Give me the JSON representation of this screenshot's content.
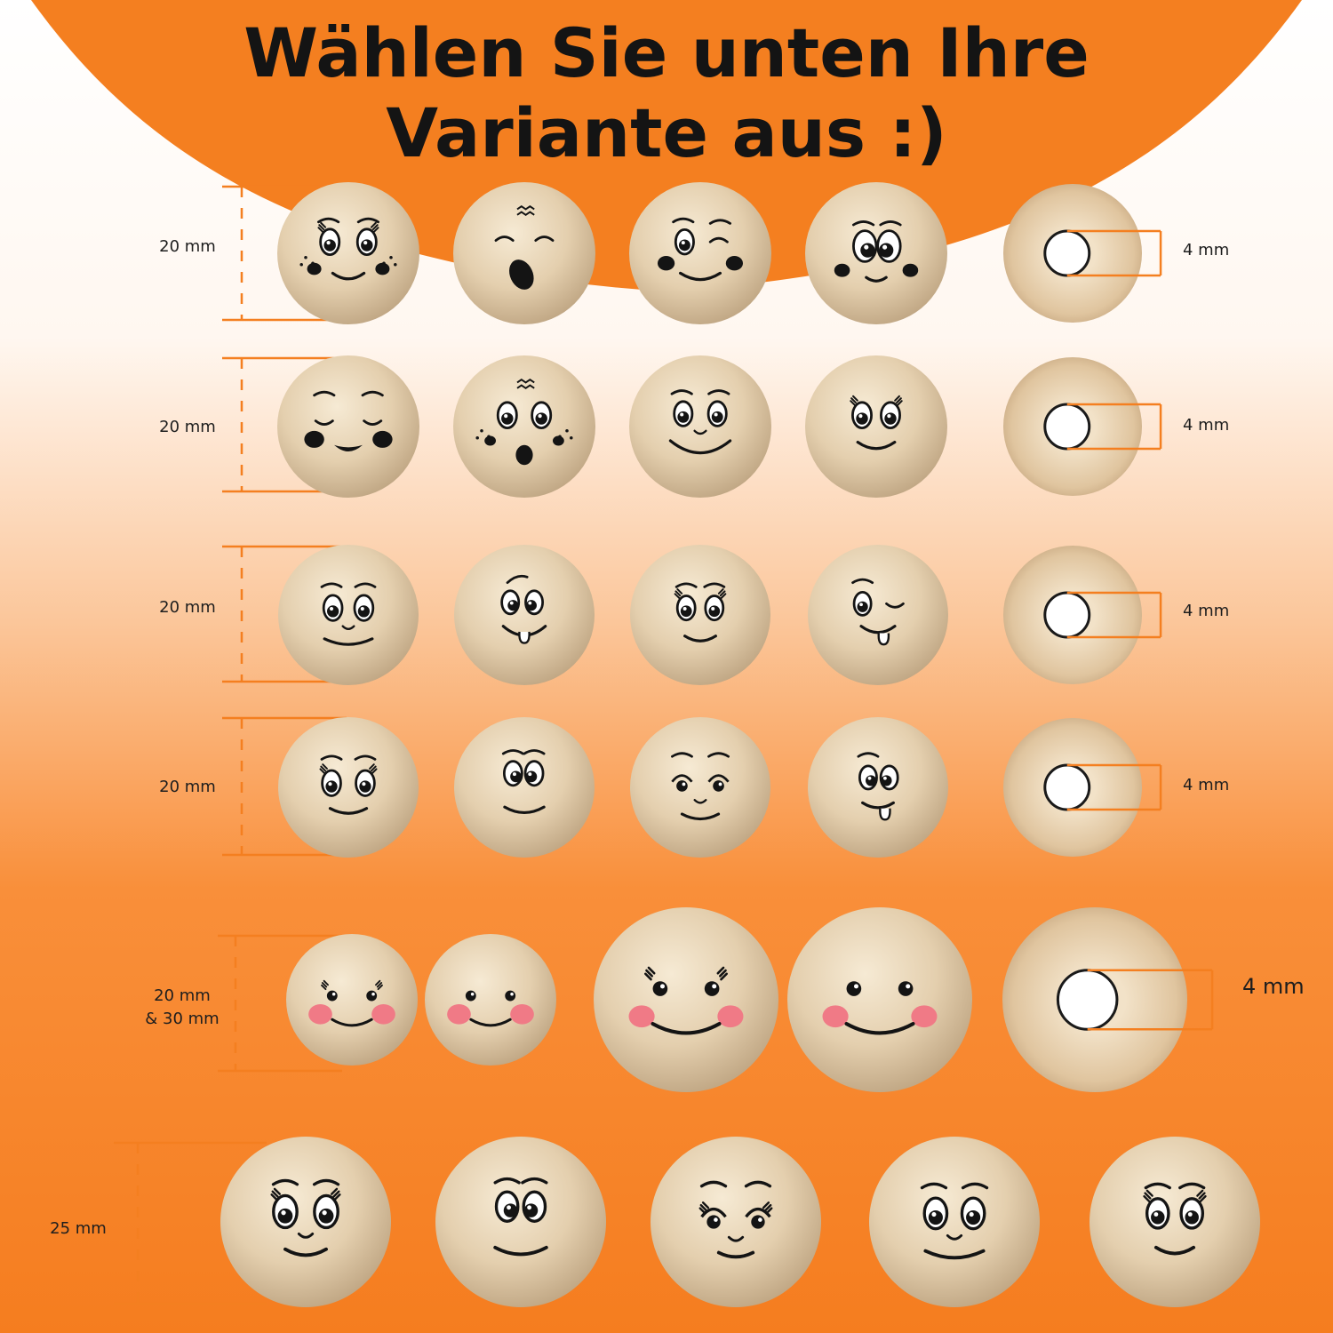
{
  "title": {
    "line1": "Wählen Sie unten Ihre",
    "line2": "Variante aus :)"
  },
  "colors": {
    "accent": "#f47f20",
    "ink": "#141414",
    "wood": "#e8d6bb",
    "cheek_pink": "#f07a86"
  },
  "rows": [
    {
      "size_label": [
        "20 mm"
      ],
      "hole_label": "4 mm",
      "faces": [
        "girl-freckles",
        "wink-surprise",
        "wink-smile",
        "googly-eyes"
      ]
    },
    {
      "size_label": [
        "20 mm"
      ],
      "hole_label": "4 mm",
      "faces": [
        "closed-eyes-smile",
        "surprised-freckles",
        "big-grin",
        "happy-lashes"
      ]
    },
    {
      "size_label": [
        "20 mm"
      ],
      "hole_label": "4 mm",
      "faces": [
        "content-smile",
        "tongue-out",
        "lashes-smile",
        "wink-tongue"
      ]
    },
    {
      "size_label": [
        "20 mm"
      ],
      "hole_label": "4 mm",
      "faces": [
        "girl-smile",
        "cross-eyed",
        "sleepy-smile",
        "cross-eyed-tongue"
      ]
    },
    {
      "size_label": [
        "20 mm",
        "& 30 mm"
      ],
      "hole_label": "4 mm",
      "faces": [
        "blush-lashes-small",
        "blush-small",
        "blush-lashes-large",
        "blush-large"
      ]
    },
    {
      "size_label": [
        "25 mm"
      ],
      "faces": [
        "girl-lashes",
        "cross-eyed-smile",
        "sleepy-lashes",
        "content-smile",
        "lashes-smile"
      ]
    }
  ]
}
